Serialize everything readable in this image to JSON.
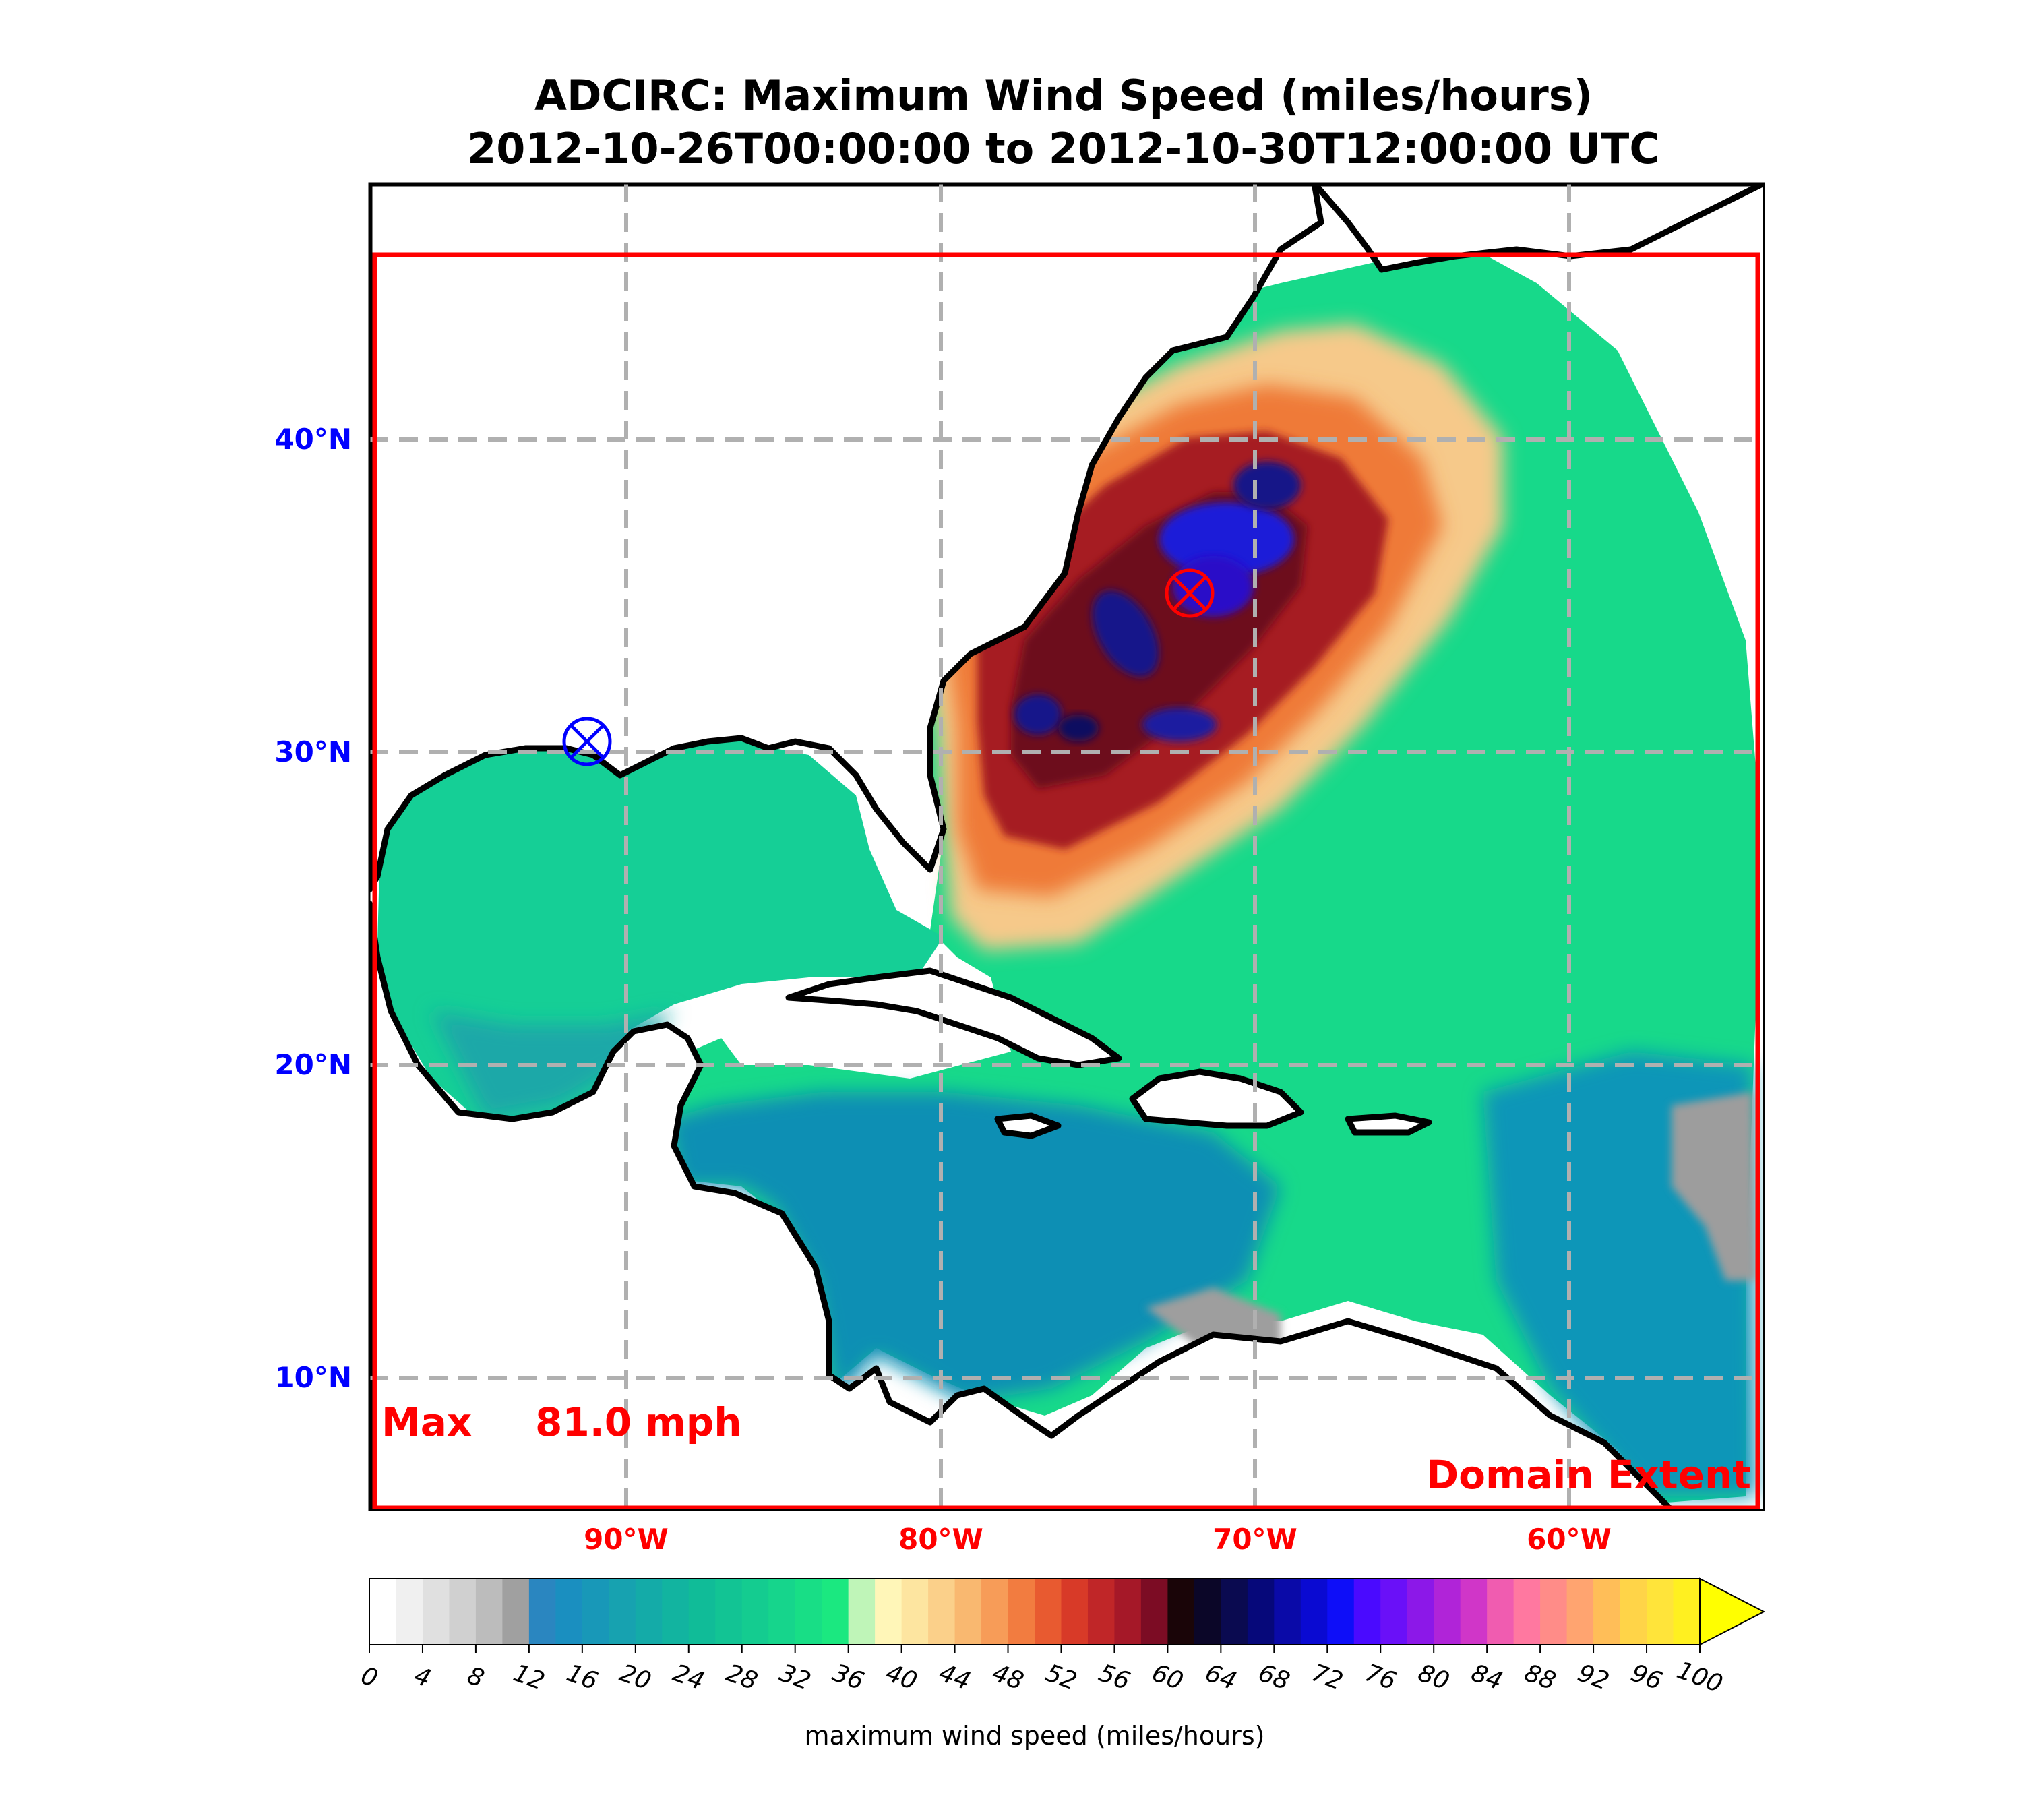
{
  "title": {
    "line1": "ADCIRC: Maximum Wind Speed (miles/hours)",
    "line2": "2012-10-26T00:00:00 to 2012-10-30T12:00:00 UTC"
  },
  "map": {
    "lon_range": [
      -98.2,
      -53.9
    ],
    "lat_range": [
      6.1,
      48.4
    ],
    "lat_labels": [
      "40°N",
      "30°N",
      "20°N",
      "10°N"
    ],
    "lon_labels": [
      "90°W",
      "80°W",
      "70°W",
      "60°W"
    ],
    "max_label": "Max",
    "max_value": "81.0 mph",
    "domain_label": "Domain Extent",
    "landfall_marker": {
      "lon": -91.2,
      "lat": 30.4,
      "color": "#0000ff"
    },
    "max_marker": {
      "lon": -71.8,
      "lat": 35.0,
      "color": "#ff0000"
    },
    "colors": {
      "domain": "#ff0000",
      "lat_labels": "#0000ff",
      "lon_labels": "#ff0000",
      "max_text": "#ff0000"
    }
  },
  "colorbar": {
    "ticks": [
      "0",
      "4",
      "8",
      "12",
      "16",
      "20",
      "24",
      "28",
      "32",
      "36",
      "40",
      "44",
      "48",
      "52",
      "56",
      "60",
      "64",
      "68",
      "72",
      "76",
      "80",
      "84",
      "88",
      "92",
      "96",
      "100"
    ],
    "label": "maximum wind speed (miles/hours)",
    "extend": "max",
    "over_color": "#ffff00"
  }
}
